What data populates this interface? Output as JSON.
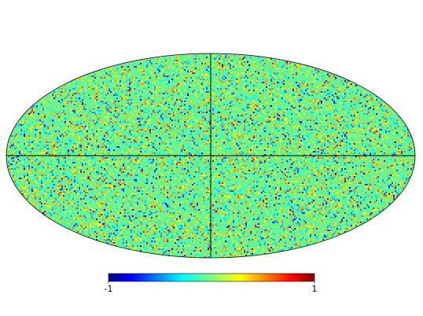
{
  "map": {
    "colorbar": {
      "lim": [
        -1,
        1
      ],
      "ticks": [
        -1,
        1
      ]
    }
  }
}
